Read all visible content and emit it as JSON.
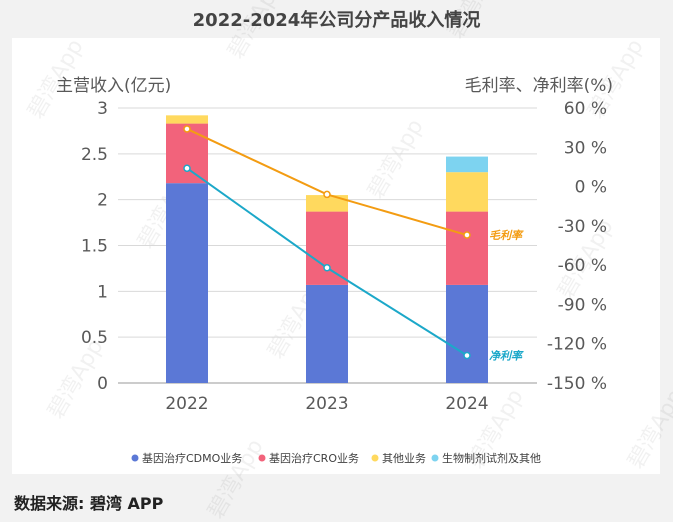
{
  "title": "2022-2024年公司分产品收入情况",
  "source": "数据来源: 碧湾 APP",
  "watermark": "碧湾App",
  "chart_data": {
    "type": "bar",
    "stacked": true,
    "categories": [
      "2022",
      "2023",
      "2024"
    ],
    "ylabel_left": "主营收入(亿元)",
    "ylabel_right": "毛利率、净利率(%)",
    "ylim_left": [
      0,
      3
    ],
    "left_ticks": [
      "0",
      "0.5",
      "1",
      "1.5",
      "2",
      "2.5",
      "3"
    ],
    "ylim_right": [
      -150,
      60
    ],
    "right_ticks": [
      "60 %",
      "30 %",
      "0 %",
      "-30 %",
      "-60 %",
      "-90 %",
      "-120 %",
      "-150 %"
    ],
    "series": [
      {
        "name": "基因治疗CDMO业务",
        "color": "#5b78d6",
        "values": [
          2.18,
          1.07,
          1.07
        ]
      },
      {
        "name": "基因治疗CRO业务",
        "color": "#f2637b",
        "values": [
          0.65,
          0.8,
          0.8
        ]
      },
      {
        "name": "其他业务",
        "color": "#ffd95e",
        "values": [
          0.09,
          0.18,
          0.43
        ]
      },
      {
        "name": "生物制剂试剂及其他",
        "color": "#7dd3f0",
        "values": [
          0,
          0,
          0.17
        ]
      }
    ],
    "lines": [
      {
        "name": "毛利率",
        "label": "毛利率",
        "color": "#f39c12",
        "values": [
          44,
          -6,
          -37
        ]
      },
      {
        "name": "净利率",
        "label": "净利率",
        "color": "#1ca8c9",
        "values": [
          14,
          -62,
          -129
        ]
      }
    ]
  }
}
